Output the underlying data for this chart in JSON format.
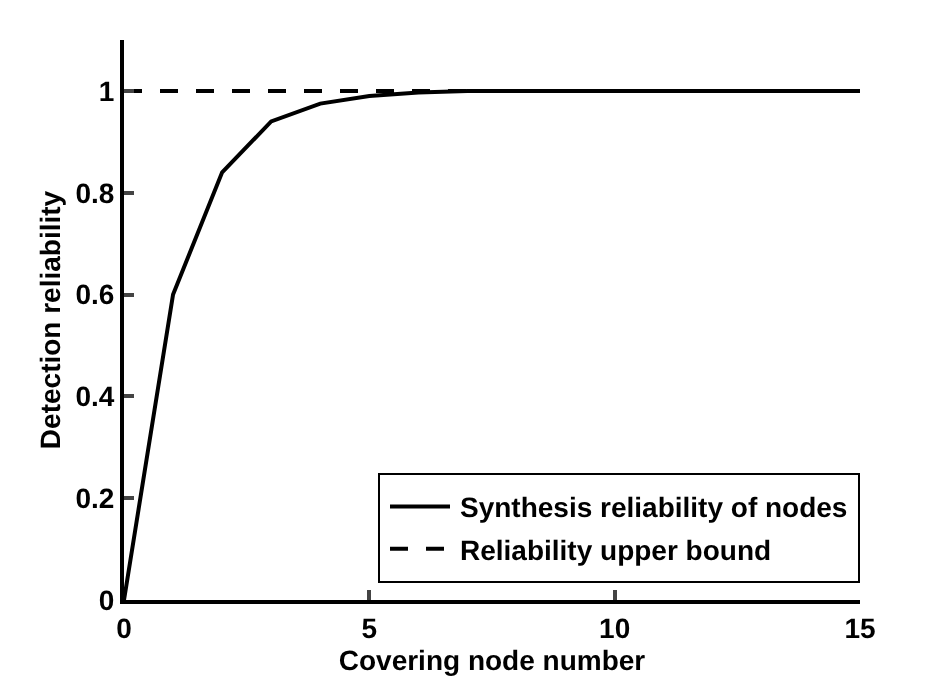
{
  "chart_data": {
    "type": "line",
    "xlabel": "Covering node number",
    "ylabel": "Detection reliability",
    "xlim": [
      0,
      15
    ],
    "xticks": [
      0,
      5,
      10,
      15
    ],
    "ylim": [
      0,
      1.1
    ],
    "yticks": [
      0,
      0.2,
      0.4,
      0.6,
      0.8,
      1
    ],
    "series": [
      {
        "name": "Synthesis reliability of nodes",
        "color": "#000000",
        "line_style": "solid",
        "x": [
          0,
          1,
          2,
          3,
          4,
          5,
          6,
          7,
          8,
          9,
          10,
          11,
          12,
          13,
          14,
          15
        ],
        "values": [
          0,
          0.6,
          0.84,
          0.94,
          0.975,
          0.99,
          0.997,
          1,
          1,
          1,
          1,
          1,
          1,
          1,
          1,
          1
        ]
      },
      {
        "name": "Reliability upper bound",
        "color": "#000000",
        "line_style": "dashed",
        "x": [
          0,
          15
        ],
        "values": [
          1,
          1
        ]
      }
    ],
    "legend": "bottom right",
    "grid": false,
    "marker": "none"
  }
}
